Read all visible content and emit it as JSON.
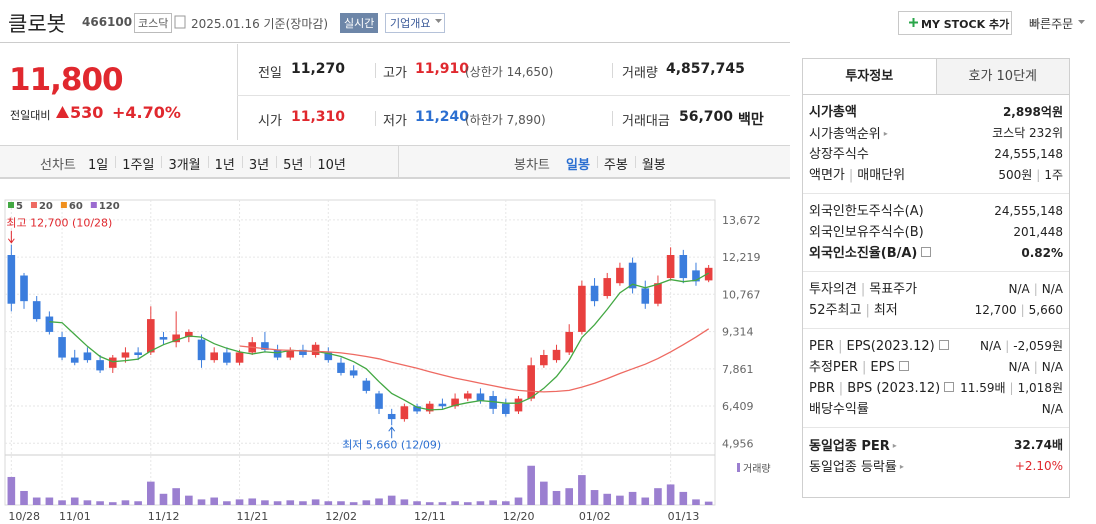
{
  "header": {
    "name": "클로봇",
    "code": "466100",
    "market": "코스닥",
    "date": "2025.01.16 기준(장마감)",
    "realtime": "실시간",
    "overview": "기업개요",
    "mystock": "MY STOCK 추가",
    "quick_order": "빠른주문"
  },
  "quote": {
    "price": "11,800",
    "change_label": "전일대비",
    "change": "530",
    "change_rate": "+4.70%",
    "prev_label": "전일",
    "prev": "11,270",
    "high_label": "고가",
    "high": "11,910",
    "upper_limit": "(상한가 14,650)",
    "volume_label": "거래량",
    "volume": "4,857,745",
    "open_label": "시가",
    "open": "11,310",
    "low_label": "저가",
    "low": "11,240",
    "lower_limit": "(하한가 7,890)",
    "amount_label": "거래대금",
    "amount": "56,700",
    "amount_unit": "백만"
  },
  "chart_tabs": {
    "line_label": "선차트",
    "line_periods": [
      "1일",
      "1주일",
      "3개월",
      "1년",
      "3년",
      "5년",
      "10년"
    ],
    "candle_label": "봉차트",
    "candle_periods": [
      "일봉",
      "주봉",
      "월봉"
    ],
    "candle_active": 0
  },
  "chart_data": [
    {
      "type": "candlestick",
      "open": [
        12300,
        11500,
        10500,
        9900,
        9100,
        8300,
        8500,
        8200,
        7900,
        8300,
        8500,
        8500,
        9100,
        8900,
        9100,
        9000,
        8200,
        8500,
        8100,
        8500,
        8900,
        8600,
        8300,
        8600,
        8400,
        8500,
        8100,
        7800,
        7400,
        6900,
        6100,
        5900,
        6400,
        6200,
        6500,
        6400,
        6700,
        6900,
        6800,
        6500,
        6200,
        6700,
        8000,
        8200,
        8500,
        9300,
        11100,
        10700,
        11200,
        12000,
        11000,
        10400,
        11400,
        12300,
        11700,
        11310
      ],
      "high": [
        12700,
        11600,
        10700,
        10100,
        9300,
        8600,
        8700,
        8400,
        8400,
        8700,
        8700,
        10300,
        9300,
        10100,
        9400,
        9200,
        8700,
        8700,
        8600,
        9100,
        9300,
        8800,
        8700,
        8800,
        8900,
        8700,
        8300,
        8000,
        7500,
        7000,
        6300,
        6500,
        6500,
        6600,
        6700,
        6900,
        7000,
        7100,
        7000,
        6700,
        6800,
        8300,
        8600,
        8800,
        9600,
        11300,
        11400,
        11600,
        12000,
        12200,
        11300,
        11500,
        12600,
        12500,
        12000,
        11910
      ],
      "low": [
        10100,
        10200,
        9700,
        9200,
        8200,
        8000,
        8100,
        7700,
        7700,
        8100,
        8200,
        8400,
        8800,
        8700,
        8900,
        7900,
        8100,
        8000,
        8000,
        8400,
        8500,
        8200,
        8200,
        8300,
        8300,
        8100,
        7600,
        7500,
        6900,
        6100,
        5660,
        5800,
        6100,
        6100,
        6300,
        6300,
        6600,
        6500,
        6100,
        6000,
        6100,
        6600,
        7900,
        8100,
        8400,
        9200,
        10300,
        10600,
        11100,
        10800,
        10200,
        10300,
        11300,
        11200,
        11100,
        11240
      ],
      "close": [
        10400,
        10500,
        9800,
        9300,
        8300,
        8100,
        8200,
        7800,
        8300,
        8500,
        8400,
        9800,
        9000,
        9200,
        9300,
        8200,
        8500,
        8100,
        8500,
        8900,
        8600,
        8300,
        8600,
        8400,
        8800,
        8200,
        7700,
        7600,
        7000,
        6300,
        5900,
        6400,
        6200,
        6500,
        6400,
        6700,
        6900,
        6600,
        6300,
        6100,
        6700,
        8000,
        8400,
        8600,
        9300,
        11100,
        10500,
        11400,
        11800,
        11000,
        10400,
        11200,
        12300,
        11400,
        11270,
        11800
      ],
      "up_color": "#e8403f",
      "down_color": "#3b7ddd",
      "series": [
        {
          "name": "5",
          "color": "#43a843",
          "values": [
            null,
            null,
            null,
            9700,
            9660,
            9200,
            8740,
            8340,
            8140,
            8180,
            8240,
            8560,
            8800,
            8980,
            9140,
            9100,
            8840,
            8660,
            8520,
            8440,
            8520,
            8480,
            8580,
            8560,
            8540,
            8460,
            8340,
            8140,
            7860,
            7360,
            6900,
            6640,
            6360,
            6260,
            6280,
            6440,
            6540,
            6620,
            6580,
            6520,
            6520,
            6740,
            7100,
            7560,
            8200,
            9080,
            9580,
            10180,
            10820,
            11160,
            11020,
            11160,
            11340,
            11260,
            11314,
            11594
          ]
        },
        {
          "name": "20",
          "color": "#ee6a62",
          "values": [
            null,
            null,
            null,
            null,
            null,
            null,
            null,
            null,
            null,
            null,
            null,
            null,
            null,
            null,
            null,
            null,
            null,
            null,
            8750,
            8700,
            8650,
            8600,
            8580,
            8560,
            8540,
            8520,
            8480,
            8420,
            8340,
            8250,
            8120,
            8000,
            7880,
            7750,
            7620,
            7500,
            7400,
            7300,
            7200,
            7100,
            7020,
            6980,
            6960,
            6980,
            7020,
            7150,
            7300,
            7480,
            7680,
            7860,
            8040,
            8260,
            8520,
            8800,
            9100,
            9420
          ]
        },
        {
          "name": "60",
          "color": "#f0901e"
        },
        {
          "name": "120",
          "color": "#9b6bd0"
        }
      ],
      "annotations": {
        "high": "최고 12,700 (10/28)",
        "low": "최저 5,660 (12/09)"
      },
      "ylim": [
        4500,
        14250
      ],
      "yticks": [
        {
          "value": 13672,
          "label": "13,672"
        },
        {
          "value": 12219,
          "label": "12,219"
        },
        {
          "value": 10767,
          "label": "10,767"
        },
        {
          "value": 9314,
          "label": "9,314"
        },
        {
          "value": 7861,
          "label": "7,861"
        },
        {
          "value": 6409,
          "label": "6,409"
        },
        {
          "value": 4956,
          "label": "4,956"
        }
      ],
      "grid": true
    },
    {
      "type": "bar",
      "title": "거래량",
      "color": "#9b7fd0",
      "categories": [
        "10/28",
        null,
        null,
        null,
        "11/01",
        null,
        null,
        null,
        null,
        null,
        null,
        "11/12",
        null,
        null,
        null,
        null,
        null,
        null,
        "11/21",
        null,
        null,
        null,
        null,
        null,
        null,
        "12/02",
        null,
        null,
        null,
        null,
        null,
        null,
        "12/11",
        null,
        null,
        null,
        null,
        null,
        null,
        "12/20",
        null,
        null,
        null,
        null,
        null,
        "01/02",
        null,
        null,
        null,
        null,
        null,
        null,
        "01/13",
        null,
        null,
        null
      ],
      "values": [
        40500000,
        20250000,
        10800000,
        10800000,
        6750000,
        10800000,
        6750000,
        5400000,
        4050000,
        6750000,
        5400000,
        33750000,
        16200000,
        24300000,
        13500000,
        8100000,
        10800000,
        5400000,
        8100000,
        9450000,
        6750000,
        5400000,
        6750000,
        5400000,
        8100000,
        5400000,
        5400000,
        4050000,
        6750000,
        9450000,
        13500000,
        8100000,
        5400000,
        4050000,
        4050000,
        5400000,
        4050000,
        5400000,
        6750000,
        5400000,
        10800000,
        56700000,
        33750000,
        20250000,
        24300000,
        43200000,
        21600000,
        16200000,
        13500000,
        18900000,
        10800000,
        24300000,
        29700000,
        18900000,
        8100000,
        4857745
      ],
      "ylim": [
        0,
        65000000
      ]
    }
  ],
  "info_panel": {
    "tabs": [
      "투자정보",
      "호가 10단계"
    ],
    "sections": [
      [
        {
          "label": [
            "시가총액"
          ],
          "value": [
            "2,898억원"
          ],
          "bold": true
        },
        {
          "label": [
            "시가총액순위"
          ],
          "value": [
            "코스닥 232위"
          ],
          "icon": "arrow"
        },
        {
          "label": [
            "상장주식수"
          ],
          "value": [
            "24,555,148"
          ]
        },
        {
          "label": [
            "액면가",
            "매매단위"
          ],
          "value": [
            "500원",
            "1주"
          ]
        }
      ],
      [
        {
          "label": [
            "외국인한도주식수(A)"
          ],
          "value": [
            "24,555,148"
          ]
        },
        {
          "label": [
            "외국인보유주식수(B)"
          ],
          "value": [
            "201,448"
          ]
        },
        {
          "label": [
            "외국인소진율(B/A)"
          ],
          "value": [
            "0.82%"
          ],
          "bold": true,
          "icon": "help"
        }
      ],
      [
        {
          "label": [
            "투자의견",
            "목표주가"
          ],
          "value": [
            "N/A",
            "N/A"
          ]
        },
        {
          "label": [
            "52주최고",
            "최저"
          ],
          "value": [
            "12,700",
            "5,660"
          ]
        }
      ],
      [
        {
          "label": [
            "PER",
            "EPS(2023.12)"
          ],
          "value": [
            "N/A",
            "-2,059원"
          ],
          "icon": "help"
        },
        {
          "label": [
            "추정PER",
            "EPS"
          ],
          "value": [
            "N/A",
            "N/A"
          ],
          "icon": "help"
        },
        {
          "label": [
            "PBR",
            "BPS (2023.12)"
          ],
          "value": [
            "11.59배",
            "1,018원"
          ],
          "icon": "help"
        },
        {
          "label": [
            "배당수익률"
          ],
          "value": [
            "N/A"
          ]
        }
      ],
      [
        {
          "label": [
            "동일업종 PER"
          ],
          "value": [
            "32.74배"
          ],
          "bold": true,
          "icon": "arrow"
        },
        {
          "label": [
            "동일업종 등락률"
          ],
          "value": [
            "+2.10%"
          ],
          "icon": "arrow",
          "color": "#e0282e"
        }
      ]
    ]
  }
}
